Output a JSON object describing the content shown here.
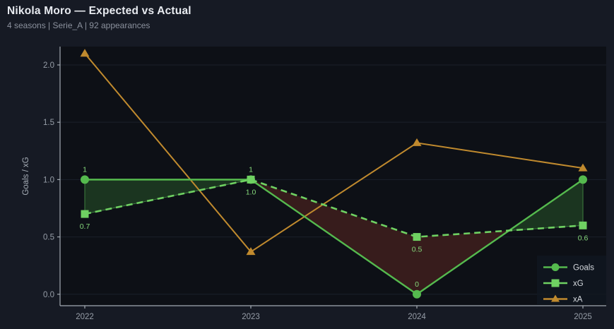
{
  "header": {
    "title": "Nikola Moro — Expected vs Actual",
    "subtitle": "4 seasons | Serie_A | 92 appearances"
  },
  "chart_data": {
    "type": "line",
    "title": "Nikola Moro — Expected vs Actual",
    "subtitle": "4 seasons | Serie_A | 92 appearances",
    "x_categories": [
      "2022",
      "2023",
      "2024",
      "2025"
    ],
    "series": [
      {
        "name": "Goals",
        "values": [
          1,
          1,
          0,
          1
        ],
        "point_labels": [
          "1",
          "1",
          "0",
          ""
        ],
        "label_pos": "above",
        "marker": "circle",
        "line_style": "solid",
        "color": "#55ba4e"
      },
      {
        "name": "xG",
        "values": [
          0.7,
          1.0,
          0.5,
          0.6
        ],
        "point_labels": [
          "0.7",
          "1.0",
          "0.5",
          "0.6"
        ],
        "label_pos": "below",
        "marker": "square",
        "line_style": "dashed",
        "color": "#6fd162"
      },
      {
        "name": "xA",
        "values": [
          2.1,
          0.37,
          1.32,
          1.1
        ],
        "point_labels": [
          "",
          "",
          "",
          ""
        ],
        "label_pos": "none",
        "marker": "triangle",
        "line_style": "solid",
        "color": "#c08a2e"
      }
    ],
    "xlabel": "",
    "ylabel": "Goals / xG",
    "yticks": [
      "0.0",
      "0.5",
      "1.0",
      "1.5",
      "2.0"
    ],
    "ylim": [
      -0.1,
      2.16
    ],
    "grid": true,
    "legend": {
      "position": "lower-right",
      "entries": [
        "Goals",
        "xG",
        "xA"
      ]
    },
    "fills": {
      "overperform_color": "#1b3520",
      "overperform_edge": "#3f8040",
      "underperform_color": "#371c1c"
    },
    "label_color": "#85d87b"
  },
  "theme": {
    "page_bg": "#161a24",
    "plot_bg": "#0d1016",
    "grid_color": "#1b212b",
    "spine_color": "#a3aab2",
    "tick_label_color": "#969da7",
    "legend_bg": "#111620",
    "legend_text": "#d5d9de"
  }
}
